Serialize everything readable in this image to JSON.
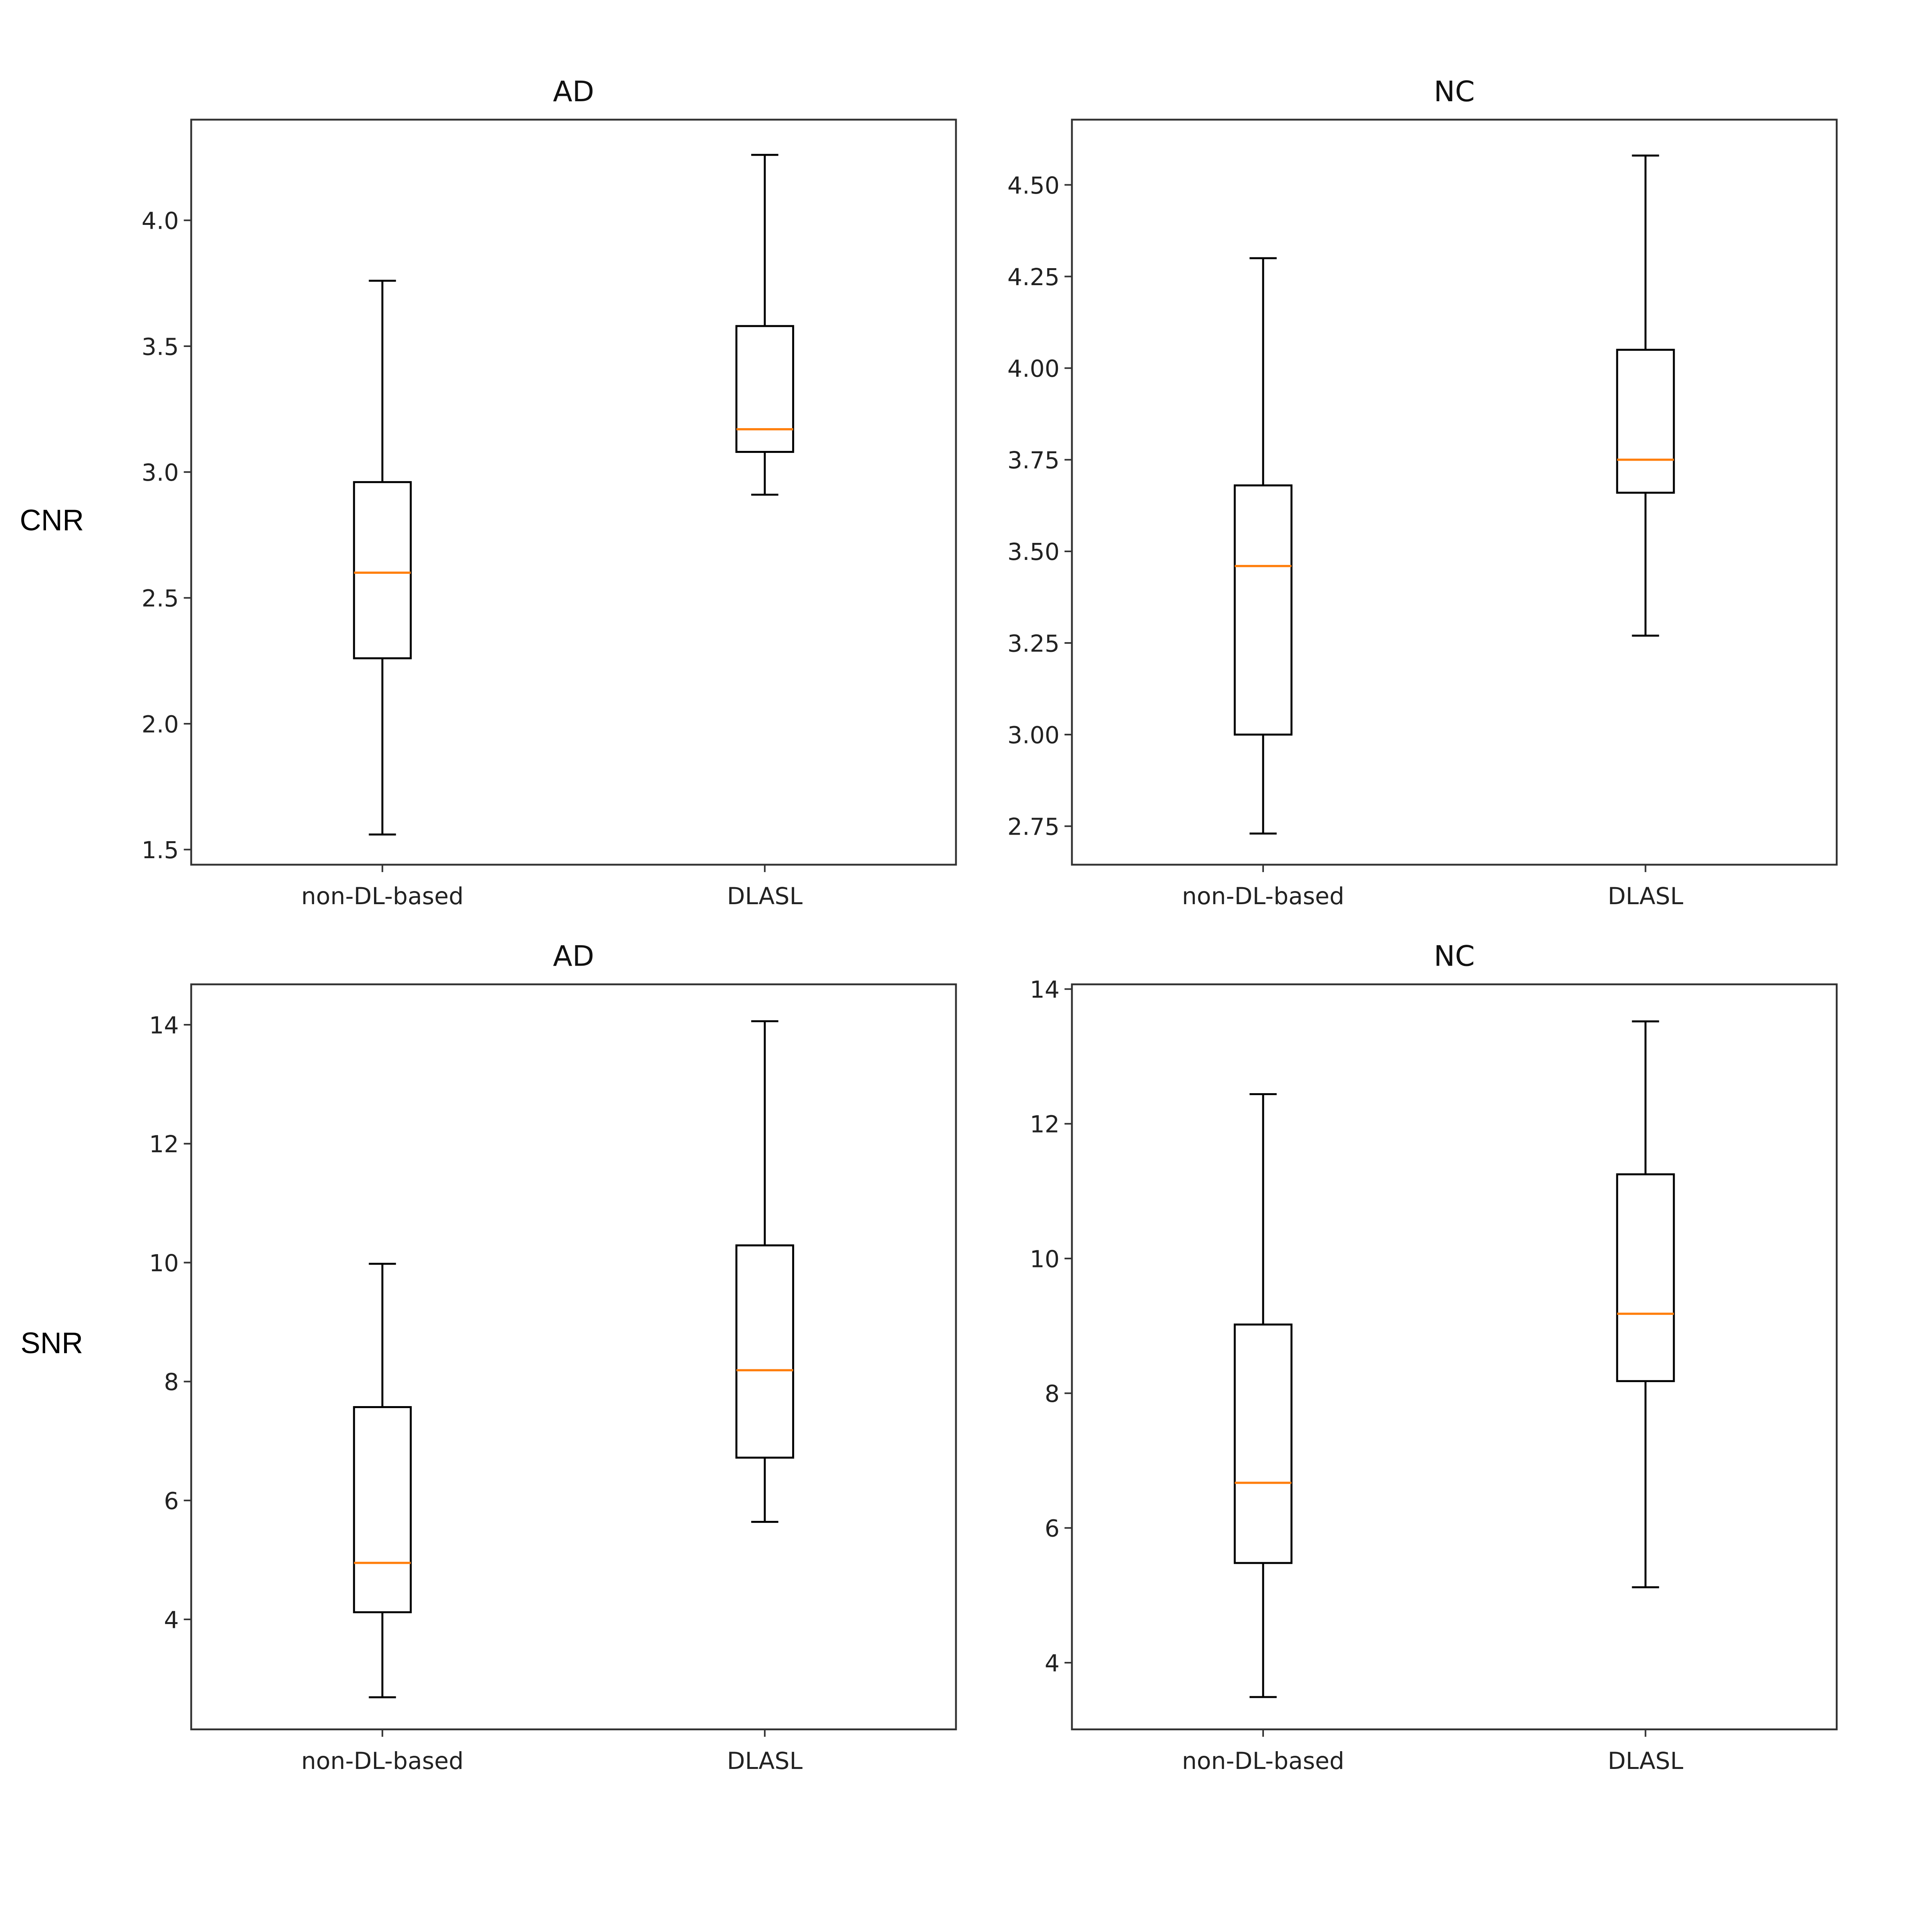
{
  "chart_data": [
    {
      "type": "box",
      "title": "AD",
      "ylabel": "CNR",
      "categories": [
        "non-DL-based",
        "DLASL"
      ],
      "ylim": [
        1.44,
        4.4
      ],
      "yticks": [
        1.5,
        2.0,
        2.5,
        3.0,
        3.5,
        4.0
      ],
      "ytick_labels": [
        "1.5",
        "2.0",
        "2.5",
        "3.0",
        "3.5",
        "4.0"
      ],
      "boxes": [
        {
          "whisker_low": 1.56,
          "q1": 2.26,
          "median": 2.6,
          "q3": 2.96,
          "whisker_high": 3.76
        },
        {
          "whisker_low": 2.91,
          "q1": 3.08,
          "median": 3.17,
          "q3": 3.58,
          "whisker_high": 4.26
        }
      ]
    },
    {
      "type": "box",
      "title": "NC",
      "ylabel": "",
      "categories": [
        "non-DL-based",
        "DLASL"
      ],
      "ylim": [
        2.645,
        4.678
      ],
      "yticks": [
        2.75,
        3.0,
        3.25,
        3.5,
        3.75,
        4.0,
        4.25,
        4.5
      ],
      "ytick_labels": [
        "2.75",
        "3.00",
        "3.25",
        "3.50",
        "3.75",
        "4.00",
        "4.25",
        "4.50"
      ],
      "boxes": [
        {
          "whisker_low": 2.73,
          "q1": 3.0,
          "median": 3.46,
          "q3": 3.68,
          "whisker_high": 4.3
        },
        {
          "whisker_low": 3.27,
          "q1": 3.66,
          "median": 3.75,
          "q3": 4.05,
          "whisker_high": 4.58
        }
      ]
    },
    {
      "type": "box",
      "title": "AD",
      "ylabel": "SNR",
      "categories": [
        "non-DL-based",
        "DLASL"
      ],
      "ylim": [
        2.15,
        14.68
      ],
      "yticks": [
        4,
        6,
        8,
        10,
        12,
        14
      ],
      "ytick_labels": [
        "4",
        "6",
        "8",
        "10",
        "12",
        "14"
      ],
      "boxes": [
        {
          "whisker_low": 2.69,
          "q1": 4.12,
          "median": 4.95,
          "q3": 7.57,
          "whisker_high": 9.98
        },
        {
          "whisker_low": 5.64,
          "q1": 6.72,
          "median": 8.19,
          "q3": 10.29,
          "whisker_high": 14.06
        }
      ]
    },
    {
      "type": "box",
      "title": "NC",
      "ylabel": "",
      "categories": [
        "non-DL-based",
        "DLASL"
      ],
      "ylim": [
        3.01,
        14.07
      ],
      "yticks": [
        4,
        6,
        8,
        10,
        12,
        14
      ],
      "ytick_labels": [
        "4",
        "6",
        "8",
        "10",
        "12",
        "14"
      ],
      "boxes": [
        {
          "whisker_low": 3.49,
          "q1": 5.48,
          "median": 6.67,
          "q3": 9.02,
          "whisker_high": 12.44
        },
        {
          "whisker_low": 5.12,
          "q1": 8.18,
          "median": 9.18,
          "q3": 11.25,
          "whisker_high": 13.52
        }
      ]
    }
  ],
  "colors": {
    "box": "#000000",
    "median": "#ff7f0e",
    "frame": "#333333"
  }
}
